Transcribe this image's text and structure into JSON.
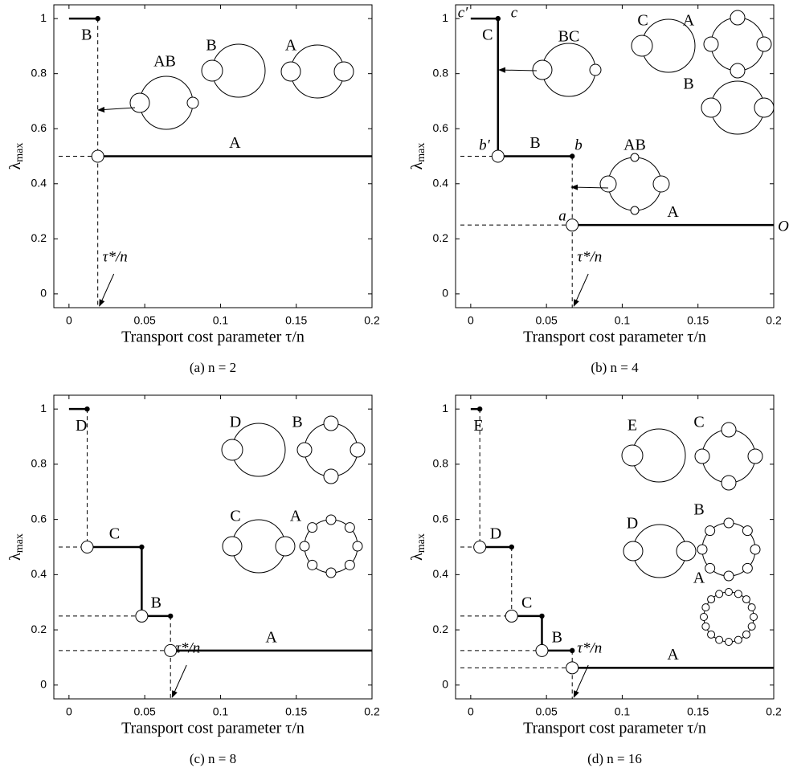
{
  "chart_data": [
    {
      "type": "step",
      "caption": "(a) n = 2",
      "x_label": "Transport cost parameter τ/n",
      "y_label": {
        "symbol": "λ",
        "subscript": "max"
      },
      "xlim": [
        -0.01,
        0.2
      ],
      "ylim": [
        -0.05,
        1.05
      ],
      "xticks": [
        0,
        0.05,
        0.1,
        0.15,
        0.2
      ],
      "yticks": [
        0,
        0.2,
        0.4,
        0.6,
        0.8,
        1
      ],
      "tau_label": "τ*/n",
      "segments": [
        {
          "label": "B",
          "x": [
            0,
            0.019
          ],
          "value": 1
        },
        {
          "label": "A",
          "x": [
            0.019,
            0.2
          ],
          "value": 0.5
        }
      ],
      "insets": [
        "AB",
        "B",
        "A"
      ]
    },
    {
      "type": "step",
      "caption": "(b) n = 4",
      "x_label": "Transport cost parameter τ/n",
      "y_label": {
        "symbol": "λ",
        "subscript": "max"
      },
      "xlim": [
        -0.01,
        0.2
      ],
      "ylim": [
        -0.05,
        1.05
      ],
      "xticks": [
        0,
        0.05,
        0.1,
        0.15,
        0.2
      ],
      "yticks": [
        0,
        0.2,
        0.4,
        0.6,
        0.8,
        1
      ],
      "tau_label": "τ*/n",
      "segments": [
        {
          "label": "C",
          "x": [
            0,
            0.018
          ],
          "value": 1
        },
        {
          "label": "B",
          "x": [
            0.018,
            0.067
          ],
          "value": 0.5
        },
        {
          "label": "A",
          "x": [
            0.067,
            0.2
          ],
          "value": 0.25
        }
      ],
      "insets": [
        "BC",
        "C",
        "A",
        "B",
        "AB"
      ],
      "annotations": [
        "c′",
        "c",
        "b′",
        "b",
        "a",
        "O"
      ]
    },
    {
      "type": "step",
      "caption": "(c) n = 8",
      "x_label": "Transport cost parameter τ/n",
      "y_label": {
        "symbol": "λ",
        "subscript": "max"
      },
      "xlim": [
        -0.01,
        0.2
      ],
      "ylim": [
        -0.05,
        1.05
      ],
      "xticks": [
        0,
        0.05,
        0.1,
        0.15,
        0.2
      ],
      "yticks": [
        0,
        0.2,
        0.4,
        0.6,
        0.8,
        1
      ],
      "tau_label": "τ*/n",
      "segments": [
        {
          "label": "D",
          "x": [
            0,
            0.012
          ],
          "value": 1
        },
        {
          "label": "C",
          "x": [
            0.012,
            0.048
          ],
          "value": 0.5
        },
        {
          "label": "B",
          "x": [
            0.048,
            0.067
          ],
          "value": 0.25
        },
        {
          "label": "A",
          "x": [
            0.067,
            0.2
          ],
          "value": 0.125
        }
      ],
      "insets": [
        "D",
        "B",
        "C",
        "A"
      ]
    },
    {
      "type": "step",
      "caption": "(d) n = 16",
      "x_label": "Transport cost parameter τ/n",
      "y_label": {
        "symbol": "λ",
        "subscript": "max"
      },
      "xlim": [
        -0.01,
        0.2
      ],
      "ylim": [
        -0.05,
        1.05
      ],
      "xticks": [
        0,
        0.05,
        0.1,
        0.15,
        0.2
      ],
      "yticks": [
        0,
        0.2,
        0.4,
        0.6,
        0.8,
        1
      ],
      "tau_label": "τ*/n",
      "segments": [
        {
          "label": "E",
          "x": [
            0,
            0.006
          ],
          "value": 1
        },
        {
          "label": "D",
          "x": [
            0.006,
            0.027
          ],
          "value": 0.5
        },
        {
          "label": "C",
          "x": [
            0.027,
            0.047
          ],
          "value": 0.25
        },
        {
          "label": "B",
          "x": [
            0.047,
            0.067
          ],
          "value": 0.125
        },
        {
          "label": "A",
          "x": [
            0.067,
            0.2
          ],
          "value": 0.0625
        }
      ],
      "insets": [
        "E",
        "C",
        "D",
        "B",
        "A"
      ]
    }
  ]
}
